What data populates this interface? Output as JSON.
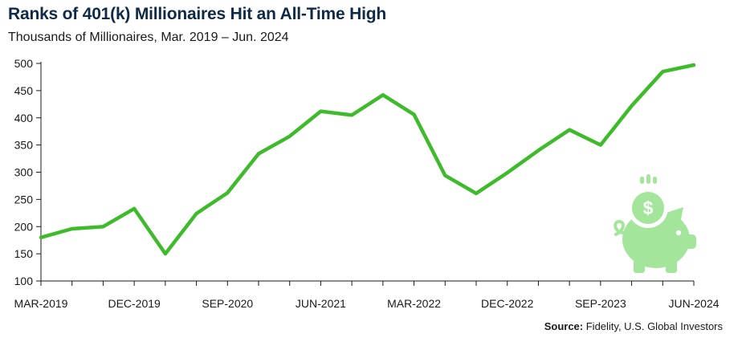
{
  "chart_data": {
    "type": "line",
    "title": "Ranks of 401(k) Millionaires Hit an All-Time High",
    "subtitle": "Thousands of Millionaires, Mar. 2019 – Jun. 2024",
    "xlabel": "",
    "ylabel": "",
    "ylim": [
      100,
      500
    ],
    "yticks": [
      100,
      150,
      200,
      250,
      300,
      350,
      400,
      450,
      500
    ],
    "x": [
      "MAR-2019",
      "JUN-2019",
      "SEP-2019",
      "DEC-2019",
      "MAR-2020",
      "JUN-2020",
      "SEP-2020",
      "DEC-2020",
      "MAR-2021",
      "JUN-2021",
      "SEP-2021",
      "DEC-2021",
      "MAR-2022",
      "JUN-2022",
      "SEP-2022",
      "DEC-2022",
      "MAR-2023",
      "JUN-2023",
      "SEP-2023",
      "DEC-2023",
      "MAR-2024",
      "JUN-2024"
    ],
    "xtick_labels": [
      "MAR-2019",
      "DEC-2019",
      "SEP-2020",
      "JUN-2021",
      "MAR-2022",
      "DEC-2022",
      "SEP-2023",
      "JUN-2024"
    ],
    "series": [
      {
        "name": "",
        "values": [
          180,
          196,
          200,
          233,
          150,
          224,
          262,
          334,
          366,
          412,
          405,
          442,
          406,
          294,
          261,
          299,
          340,
          378,
          350,
          422,
          485,
          497
        ]
      }
    ],
    "grid": false,
    "line_color": "#3dbb2a"
  },
  "source": {
    "label": "Source:",
    "text": "Fidelity, U.S. Global Investors"
  },
  "icon": {
    "name": "piggy-bank-dollar-icon",
    "color": "#a3e59a"
  }
}
